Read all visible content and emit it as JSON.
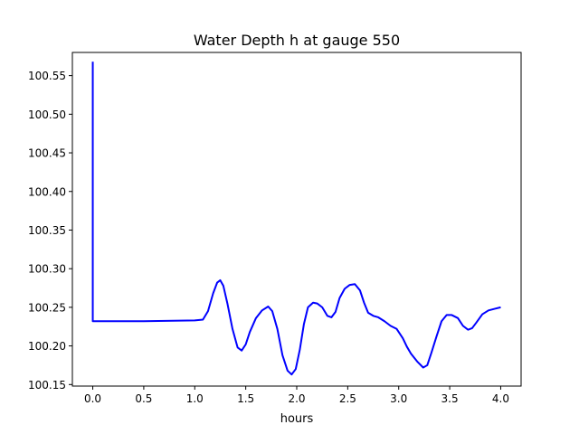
{
  "chart_data": {
    "type": "line",
    "title": "Water Depth h at gauge 550",
    "xlabel": "hours",
    "ylabel": "",
    "xlim": [
      -0.2,
      4.2
    ],
    "ylim": [
      100.148,
      100.58
    ],
    "x_ticks": [
      0.0,
      0.5,
      1.0,
      1.5,
      2.0,
      2.5,
      3.0,
      3.5,
      4.0
    ],
    "x_tick_labels": [
      "0.0",
      "0.5",
      "1.0",
      "1.5",
      "2.0",
      "2.5",
      "3.0",
      "3.5",
      "4.0"
    ],
    "y_ticks": [
      100.15,
      100.2,
      100.25,
      100.3,
      100.35,
      100.4,
      100.45,
      100.5,
      100.55
    ],
    "y_tick_labels": [
      "100.15",
      "100.20",
      "100.25",
      "100.30",
      "100.35",
      "100.40",
      "100.45",
      "100.50",
      "100.55"
    ],
    "grid": false,
    "series": [
      {
        "color": "#0000ff",
        "x": [
          0.0,
          0.0,
          0.001,
          0.5,
          1.0,
          1.08,
          1.13,
          1.18,
          1.22,
          1.25,
          1.28,
          1.32,
          1.37,
          1.42,
          1.46,
          1.5,
          1.54,
          1.6,
          1.66,
          1.72,
          1.76,
          1.81,
          1.86,
          1.91,
          1.95,
          1.99,
          2.03,
          2.07,
          2.11,
          2.16,
          2.2,
          2.25,
          2.3,
          2.34,
          2.38,
          2.42,
          2.47,
          2.52,
          2.57,
          2.62,
          2.66,
          2.7,
          2.75,
          2.8,
          2.86,
          2.92,
          2.98,
          3.04,
          3.08,
          3.12,
          3.18,
          3.24,
          3.28,
          3.32,
          3.37,
          3.42,
          3.47,
          3.52,
          3.58,
          3.63,
          3.68,
          3.72,
          3.76,
          3.82,
          3.88,
          3.94,
          4.0
        ],
        "y": [
          100.568,
          100.232,
          100.232,
          100.232,
          100.233,
          100.234,
          100.245,
          100.268,
          100.282,
          100.285,
          100.278,
          100.255,
          100.222,
          100.198,
          100.194,
          100.202,
          100.218,
          100.236,
          100.246,
          100.251,
          100.245,
          100.222,
          100.188,
          100.168,
          100.163,
          100.17,
          100.195,
          100.228,
          100.25,
          100.256,
          100.255,
          100.25,
          100.239,
          100.237,
          100.244,
          100.262,
          100.274,
          100.279,
          100.28,
          100.272,
          100.256,
          100.243,
          100.239,
          100.237,
          100.232,
          100.226,
          100.222,
          100.21,
          100.199,
          100.19,
          100.18,
          100.172,
          100.175,
          100.191,
          100.212,
          100.232,
          100.24,
          100.24,
          100.236,
          100.226,
          100.221,
          100.223,
          100.23,
          100.241,
          100.246,
          100.248,
          100.25
        ]
      }
    ]
  }
}
